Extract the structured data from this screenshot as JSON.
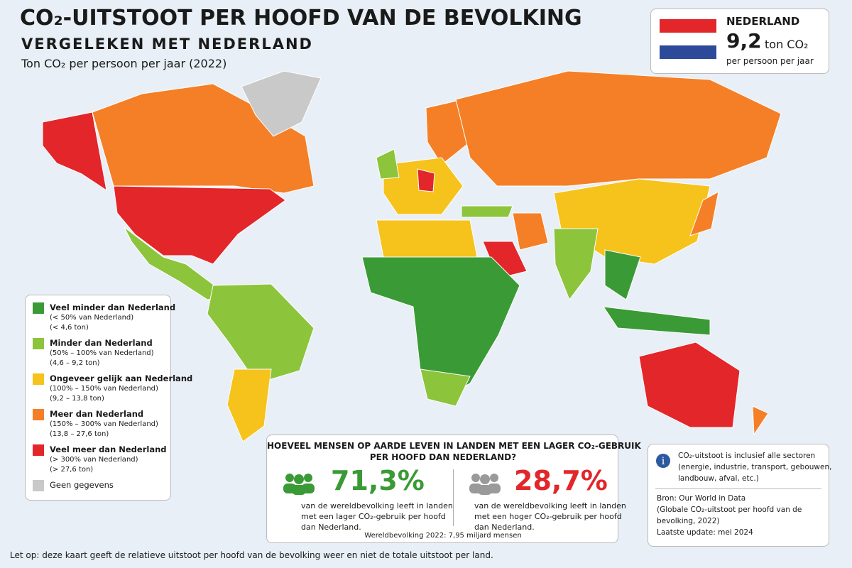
{
  "header": {
    "title": "CO₂-UITSTOOT PER HOOFD VAN DE BEVOLKING",
    "subtitle": "VERGELEKEN MET NEDERLAND",
    "unit": "Ton CO₂ per persoon per jaar (2022)"
  },
  "nl_box": {
    "country": "NEDERLAND",
    "value": "9,2",
    "unit": "ton CO₂",
    "caption": "per persoon per jaar"
  },
  "legend": {
    "items": [
      {
        "label": "Veel minder dan Nederland",
        "range": "(< 50% van Nederland)",
        "tons": "(< 4,6 ton)",
        "color": "#3a9a35"
      },
      {
        "label": "Minder dan Nederland",
        "range": "(50% – 100% van Nederland)",
        "tons": "(4,6 – 9,2 ton)",
        "color": "#8cc43c"
      },
      {
        "label": "Ongeveer gelijk aan Nederland",
        "range": "(100% – 150% van Nederland)",
        "tons": "(9,2 – 13,8 ton)",
        "color": "#f6c21c"
      },
      {
        "label": "Meer dan Nederland",
        "range": "(150% – 300% van Nederland)",
        "tons": "(13,8 – 27,6 ton)",
        "color": "#f47f26"
      },
      {
        "label": "Veel meer dan Nederland",
        "range": "(> 300% van Nederland)",
        "tons": "(> 27,6 ton)",
        "color": "#e2262a"
      },
      {
        "label": "Geen gegevens",
        "color": "#c9c9c9"
      }
    ]
  },
  "stats": {
    "question": [
      "HOEVEEL MENSEN OP AARDE LEVEN IN LANDEN MET EEN LAGER CO₂-GEBRUIK",
      "PER HOOFD DAN NEDERLAND?"
    ],
    "lower": {
      "value": "71,3%",
      "text": [
        "van de wereldbevolking leeft in landen",
        "met een lager CO₂-gebruik per hoofd",
        "dan Nederland."
      ]
    },
    "higher": {
      "value": "28,7%",
      "text": [
        "van de wereldbevolking leeft in landen",
        "met een hoger CO₂-gebruik per hoofd",
        "dan Nederland."
      ]
    },
    "footnote": "Wereldbevolking 2022: 7,95 miljard mensen"
  },
  "info": {
    "note": [
      "CO₂-uitstoot is inclusief alle sectoren",
      "(energie, industrie, transport, gebouwen,",
      "landbouw, afval, etc.)"
    ],
    "source": [
      "Bron: Our World in Data",
      "(Globale CO₂-uitstoot per hoofd van de",
      "bevolking, 2022)",
      "Laatste update: mei 2024"
    ]
  },
  "footer": "Let op: deze kaart geeft de relatieve uitstoot per hoofd van de bevolking weer en niet de totale uitstoot per land."
}
